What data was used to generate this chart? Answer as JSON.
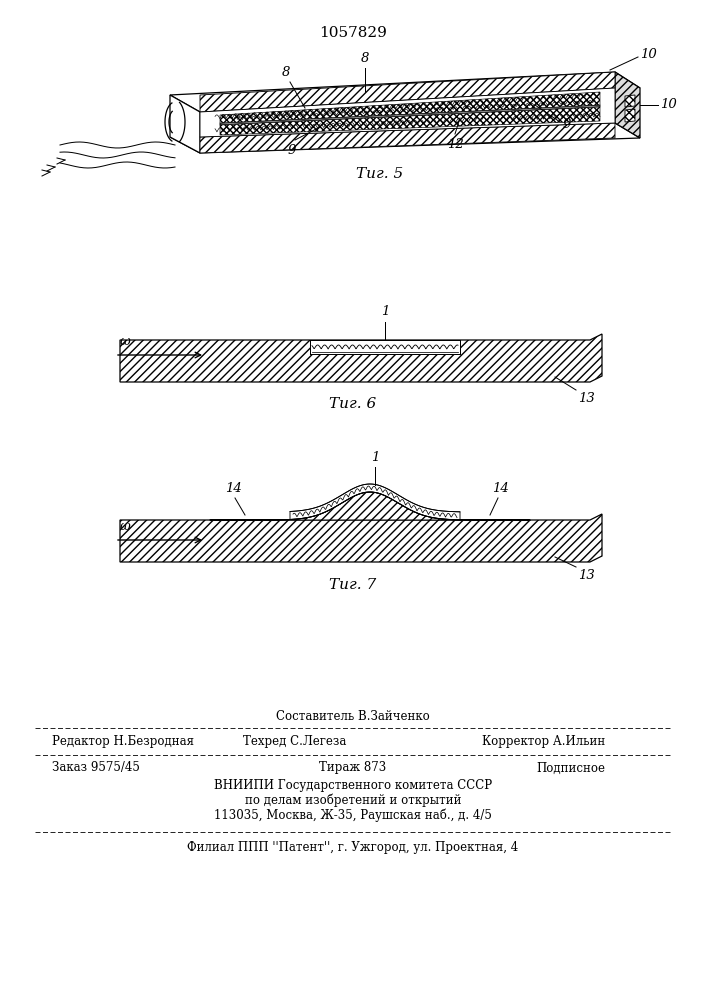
{
  "title": "1057829",
  "fig5_caption": "Τиг. 5",
  "fig6_caption": "Τиг. 6",
  "fig7_caption": "Τиг. 7",
  "background": "#ffffff",
  "line_color": "#000000",
  "footer": {
    "line1_center": "Составитель В.Зайченко",
    "line2_left": "Редактор Н.Безродная",
    "line2_center": "Техред С.Легеза",
    "line2_right": "Корректор А.Ильин",
    "line3_left": "Заказ 9575/45",
    "line3_center": "Тираж 873",
    "line3_right": "Подписное",
    "line4": "ВНИИПИ Государственного комитета СССР",
    "line5": "по делам изобретений и открытий",
    "line6": "113035, Москва, Ж-35, Раушская наб., д. 4/5",
    "line7": "Филиал ППП ''Патент'', г. Ужгород, ул. Проектная, 4"
  }
}
